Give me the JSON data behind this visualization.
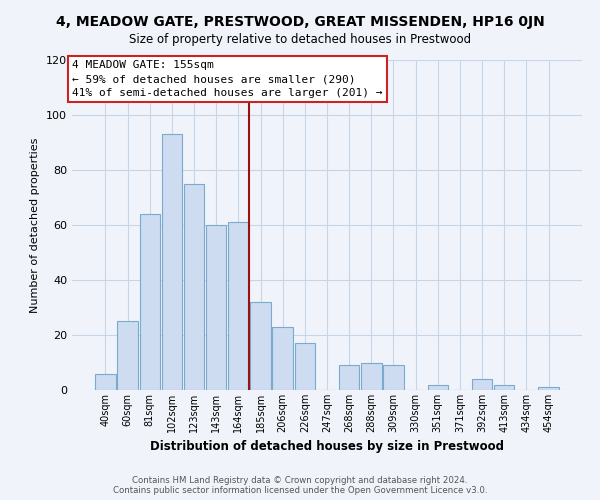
{
  "title": "4, MEADOW GATE, PRESTWOOD, GREAT MISSENDEN, HP16 0JN",
  "subtitle": "Size of property relative to detached houses in Prestwood",
  "xlabel": "Distribution of detached houses by size in Prestwood",
  "ylabel": "Number of detached properties",
  "bar_color": "#cddcf0",
  "bar_edge_color": "#7aaace",
  "bar_labels": [
    "40sqm",
    "60sqm",
    "81sqm",
    "102sqm",
    "123sqm",
    "143sqm",
    "164sqm",
    "185sqm",
    "206sqm",
    "226sqm",
    "247sqm",
    "268sqm",
    "288sqm",
    "309sqm",
    "330sqm",
    "351sqm",
    "371sqm",
    "392sqm",
    "413sqm",
    "434sqm",
    "454sqm"
  ],
  "bar_values": [
    6,
    25,
    64,
    93,
    75,
    60,
    61,
    32,
    23,
    17,
    0,
    9,
    10,
    9,
    0,
    2,
    0,
    4,
    2,
    0,
    1
  ],
  "ylim": [
    0,
    120
  ],
  "yticks": [
    0,
    20,
    40,
    60,
    80,
    100,
    120
  ],
  "vline_color": "#991111",
  "annotation_title": "4 MEADOW GATE: 155sqm",
  "annotation_line1": "← 59% of detached houses are smaller (290)",
  "annotation_line2": "41% of semi-detached houses are larger (201) →",
  "annotation_box_color": "#ffffff",
  "annotation_box_edge": "#cc2222",
  "footer_line1": "Contains HM Land Registry data © Crown copyright and database right 2024.",
  "footer_line2": "Contains public sector information licensed under the Open Government Licence v3.0.",
  "background_color": "#f0f4fa",
  "grid_color": "#c8d4e8"
}
